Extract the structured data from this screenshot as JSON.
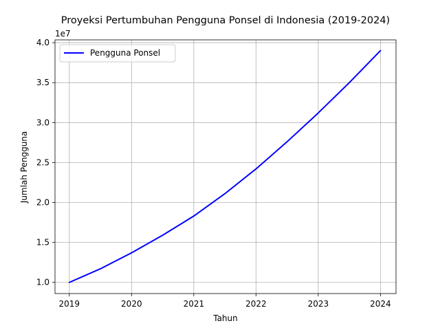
{
  "chart_data": {
    "type": "line",
    "title": "Proyeksi Pertumbuhan Pengguna Ponsel di Indonesia (2019-2024)",
    "xlabel": "Tahun",
    "ylabel": "Jumlah Pengguna",
    "y_multiplier_label": "1e7",
    "y_multiplier": 10000000,
    "xlim": [
      2018.77,
      2024.25
    ],
    "ylim": [
      8600000,
      40350000
    ],
    "x_ticks": [
      2019,
      2020,
      2021,
      2022,
      2023,
      2024
    ],
    "x_tick_labels": [
      "2019",
      "2020",
      "2021",
      "2022",
      "2023",
      "2024"
    ],
    "y_ticks": [
      10000000,
      15000000,
      20000000,
      25000000,
      30000000,
      35000000,
      40000000
    ],
    "y_tick_labels": [
      "1.0",
      "1.5",
      "2.0",
      "2.5",
      "3.0",
      "3.5",
      "4.0"
    ],
    "grid": true,
    "legend_position": "upper-left",
    "series": [
      {
        "name": "Pengguna Ponsel",
        "color": "#0000ff",
        "x": [
          2019,
          2019.5,
          2020,
          2020.5,
          2021,
          2021.5,
          2022,
          2022.5,
          2023,
          2023.5,
          2024
        ],
        "y": [
          10000000,
          11700000,
          13700000,
          15900000,
          18300000,
          21100000,
          24200000,
          27600000,
          31200000,
          35000000,
          39000000
        ]
      }
    ]
  }
}
